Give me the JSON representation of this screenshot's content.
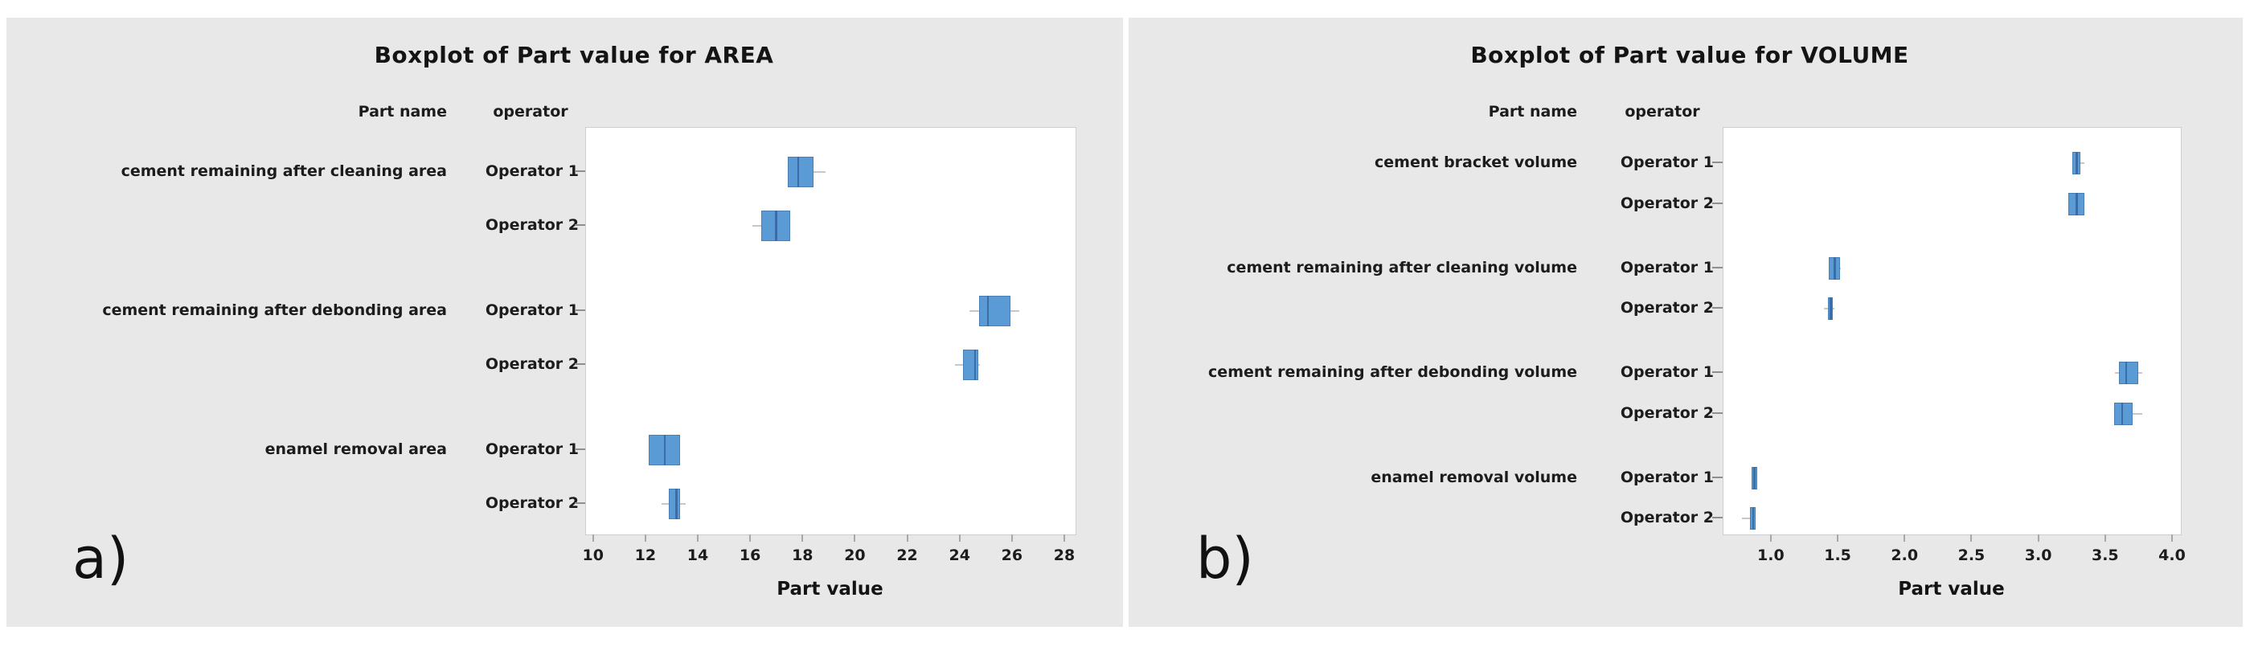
{
  "style": {
    "panel_background": "#e9e8e8",
    "plot_background": "#ffffff",
    "box_fill": "#5b9bd5",
    "box_border": "#4a7fb5",
    "median_color": "#3a6da8",
    "whisker_color": "#c8c8c8",
    "text_color": "#1c1c1c"
  },
  "chart_data": [
    {
      "type": "boxplot",
      "orientation": "horizontal",
      "title": "Boxplot of Part value for AREA",
      "xlabel": "Part value",
      "corner_label": "a)",
      "col_headers": {
        "part": "Part name",
        "operator": "operator"
      },
      "x_ticks": [
        "10",
        "12",
        "14",
        "16",
        "18",
        "20",
        "22",
        "24",
        "26",
        "28"
      ],
      "xlim": [
        9.7,
        28.4
      ],
      "grid": false,
      "groups": [
        {
          "part": "cement remaining after cleaning  area",
          "rows": [
            {
              "operator": "Operator 1",
              "whisker_low": 17.4,
              "q1": 17.4,
              "median": 17.8,
              "q3": 18.4,
              "whisker_high": 18.85
            },
            {
              "operator": "Operator 2",
              "whisker_low": 16.05,
              "q1": 16.4,
              "median": 16.95,
              "q3": 17.5,
              "whisker_high": 17.5
            }
          ]
        },
        {
          "part": "cement remaining after debonding area",
          "rows": [
            {
              "operator": "Operator 1",
              "whisker_low": 24.35,
              "q1": 24.7,
              "median": 25.05,
              "q3": 25.9,
              "whisker_high": 26.25
            },
            {
              "operator": "Operator 2",
              "whisker_low": 23.8,
              "q1": 24.1,
              "median": 24.55,
              "q3": 24.7,
              "whisker_high": 24.75
            }
          ]
        },
        {
          "part": "enamel removal area",
          "rows": [
            {
              "operator": "Operator 1",
              "whisker_low": 12.1,
              "q1": 12.1,
              "median": 12.7,
              "q3": 13.3,
              "whisker_high": 13.3
            },
            {
              "operator": "Operator 2",
              "whisker_low": 12.6,
              "q1": 12.85,
              "median": 13.15,
              "q3": 13.3,
              "whisker_high": 13.5
            }
          ]
        }
      ]
    },
    {
      "type": "boxplot",
      "orientation": "horizontal",
      "title": "Boxplot of Part value for VOLUME",
      "xlabel": "Part value",
      "corner_label": "b)",
      "col_headers": {
        "part": "Part name",
        "operator": "operator"
      },
      "x_ticks": [
        "1.0",
        "1.5",
        "2.0",
        "2.5",
        "3.0",
        "3.5",
        "4.0"
      ],
      "xlim": [
        0.64,
        4.06
      ],
      "grid": false,
      "groups": [
        {
          "part": "cement bracket volume",
          "rows": [
            {
              "operator": "Operator 1",
              "whisker_low": 3.25,
              "q1": 3.25,
              "median": 3.28,
              "q3": 3.31,
              "whisker_high": 3.34
            },
            {
              "operator": "Operator 2",
              "whisker_low": 3.22,
              "q1": 3.22,
              "median": 3.28,
              "q3": 3.34,
              "whisker_high": 3.34
            }
          ]
        },
        {
          "part": "cement remaining after cleaning volume",
          "rows": [
            {
              "operator": "Operator 1",
              "whisker_low": 1.43,
              "q1": 1.43,
              "median": 1.47,
              "q3": 1.51,
              "whisker_high": 1.52
            },
            {
              "operator": "Operator 2",
              "whisker_low": 1.39,
              "q1": 1.42,
              "median": 1.44,
              "q3": 1.46,
              "whisker_high": 1.47
            }
          ]
        },
        {
          "part": "cement remaining after debonding volume",
          "rows": [
            {
              "operator": "Operator 1",
              "whisker_low": 3.57,
              "q1": 3.6,
              "median": 3.65,
              "q3": 3.74,
              "whisker_high": 3.77
            },
            {
              "operator": "Operator 2",
              "whisker_low": 3.56,
              "q1": 3.56,
              "median": 3.62,
              "q3": 3.7,
              "whisker_high": 3.77
            }
          ]
        },
        {
          "part": "enamel removal volume",
          "rows": [
            {
              "operator": "Operator 1",
              "whisker_low": 0.85,
              "q1": 0.85,
              "median": 0.87,
              "q3": 0.89,
              "whisker_high": 0.89
            },
            {
              "operator": "Operator 2",
              "whisker_low": 0.78,
              "q1": 0.84,
              "median": 0.86,
              "q3": 0.88,
              "whisker_high": 0.88
            }
          ]
        }
      ]
    }
  ]
}
